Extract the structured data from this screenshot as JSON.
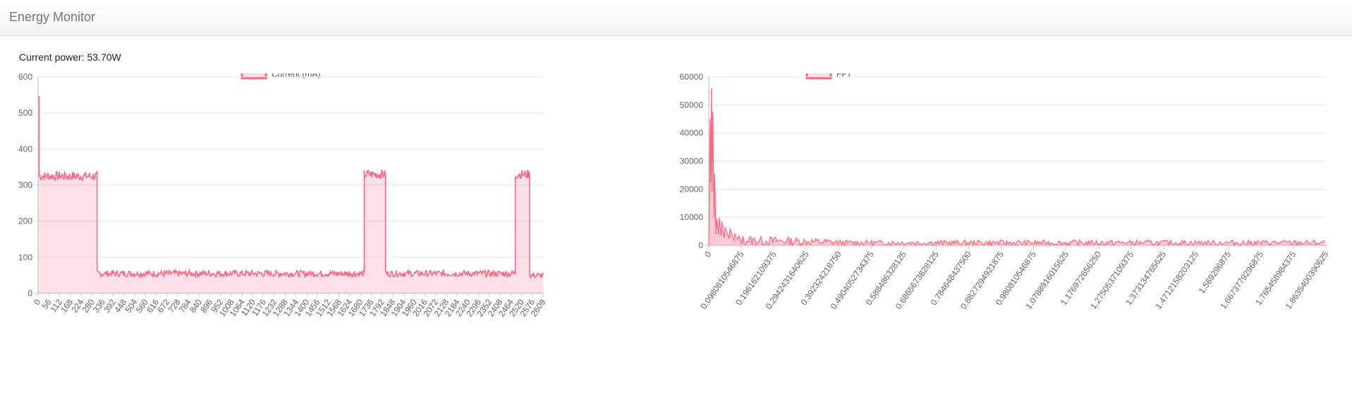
{
  "app": {
    "title": "Energy Monitor"
  },
  "status": {
    "power_label": "Current power: 53.70W"
  },
  "colors": {
    "series": "#ff6384",
    "fill": "rgba(255,99,132,0.2)",
    "grid": "#e5e5e5",
    "text": "#666666"
  },
  "chart_data": [
    {
      "type": "line",
      "legend": "Current (mA)",
      "legend_position": "top-center",
      "grid": true,
      "ylim": [
        0,
        600
      ],
      "yticks": [
        0,
        100,
        200,
        300,
        400,
        500,
        600
      ],
      "xticks": [
        "0",
        "56",
        "112",
        "168",
        "224",
        "280",
        "336",
        "392",
        "448",
        "504",
        "560",
        "616",
        "672",
        "728",
        "784",
        "840",
        "896",
        "952",
        "1008",
        "1064",
        "1120",
        "1176",
        "1232",
        "1288",
        "1344",
        "1400",
        "1456",
        "1512",
        "1568",
        "1624",
        "1680",
        "1736",
        "1792",
        "1848",
        "1904",
        "1960",
        "2016",
        "2072",
        "2128",
        "2184",
        "2240",
        "2296",
        "2352",
        "2408",
        "2464",
        "2520",
        "2576",
        "2609"
      ],
      "x_max": 2609,
      "segments": [
        {
          "x_start": 0,
          "x_end": 6,
          "level": 545
        },
        {
          "x_start": 6,
          "x_end": 305,
          "level": 325
        },
        {
          "x_start": 305,
          "x_end": 1685,
          "level": 55
        },
        {
          "x_start": 1685,
          "x_end": 1795,
          "level": 330
        },
        {
          "x_start": 1795,
          "x_end": 2465,
          "level": 55
        },
        {
          "x_start": 2465,
          "x_end": 2540,
          "level": 330
        },
        {
          "x_start": 2540,
          "x_end": 2609,
          "level": 50
        }
      ]
    },
    {
      "type": "line",
      "legend": "FFT",
      "legend_position": "top-center",
      "grid": true,
      "ylim": [
        0,
        60000
      ],
      "yticks": [
        0,
        10000,
        20000,
        30000,
        40000,
        50000,
        60000
      ],
      "xticks": [
        "0",
        "0.0980810546875",
        "0.196162109375",
        "0.2942431640625",
        "0.392324218750",
        "0.4904052734375",
        "0.588486328125",
        "0.6865673828125",
        "0.784648437500",
        "0.8827294921875",
        "0.980810546875",
        "1.0788916015625",
        "1.176972656250",
        "1.2750537109375",
        "1.373134765625",
        "1.4712158203125",
        "1.569296875",
        "1.6673779296875",
        "1.765458984375",
        "1.8635400390625"
      ],
      "x_max": 1.9,
      "peaks": [
        {
          "x": 0.004,
          "y": 45000
        },
        {
          "x": 0.008,
          "y": 56000
        },
        {
          "x": 0.012,
          "y": 47500
        },
        {
          "x": 0.018,
          "y": 25500
        },
        {
          "x": 0.024,
          "y": 9500
        },
        {
          "x": 0.032,
          "y": 10000
        },
        {
          "x": 0.04,
          "y": 8500
        },
        {
          "x": 0.05,
          "y": 6500
        },
        {
          "x": 0.065,
          "y": 6000
        },
        {
          "x": 0.08,
          "y": 4000
        }
      ],
      "noise_level": 1200
    }
  ]
}
